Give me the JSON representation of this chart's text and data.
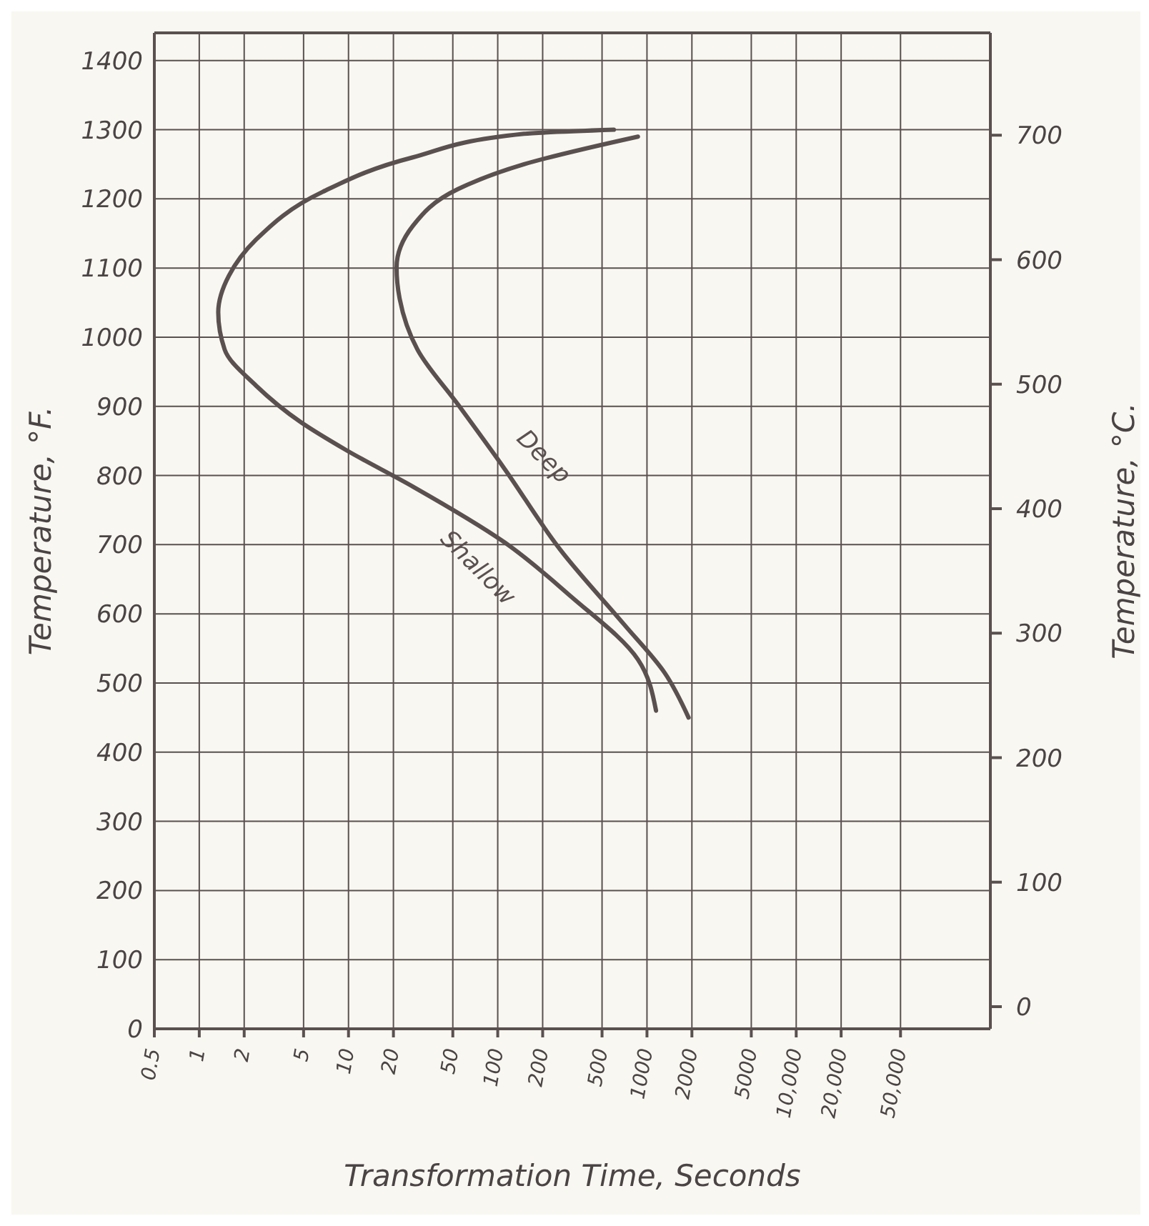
{
  "chart_data": {
    "type": "line",
    "xlabel": "Transformation Time, Seconds",
    "ylabel": "Temperature, °F.",
    "y2label": "Temperature, °C.",
    "log": "x",
    "grid": true,
    "legend": false,
    "marker": "none",
    "line_style": "solid",
    "xlim": [
      0.5,
      200000
    ],
    "xticks": [
      0.5,
      1,
      2,
      5,
      10,
      20,
      50,
      100,
      200,
      500,
      1000,
      2000,
      5000,
      {
        "value": 10000,
        "label": "10,000"
      },
      {
        "value": 20000,
        "label": "20,000"
      },
      {
        "value": 50000,
        "label": "50,000"
      }
    ],
    "ylim": [
      0,
      1440
    ],
    "yticks": [
      0,
      100,
      200,
      300,
      400,
      500,
      600,
      700,
      800,
      900,
      1000,
      1100,
      1200,
      1300,
      1400
    ],
    "y2lim": [
      -17.8,
      782.2
    ],
    "y2ticks": [
      0,
      100,
      200,
      300,
      400,
      500,
      600,
      700
    ],
    "series": [
      {
        "name": "Shallow",
        "color": "#5a5050",
        "x": [
          600,
          150,
          27,
          6.7,
          2.4,
          1.58,
          1.34,
          1.48,
          2.4,
          4.8,
          9.6,
          27,
          110,
          310,
          870,
          1150
        ],
        "values": [
          1300,
          1294,
          1260,
          1210,
          1141,
          1089,
          1036,
          982,
          930,
          877,
          837,
          784,
          704,
          625,
          534,
          460
        ]
      },
      {
        "name": "Deep",
        "color": "#5a5050",
        "x": [
          870,
          150,
          54,
          27,
          21,
          22,
          29,
          54,
          110,
          264,
          700,
          1320,
          1900
        ],
        "values": [
          1290,
          1250,
          1214,
          1161,
          1101,
          1056,
          982,
          903,
          811,
          692,
          585,
          514,
          450
        ]
      }
    ]
  }
}
